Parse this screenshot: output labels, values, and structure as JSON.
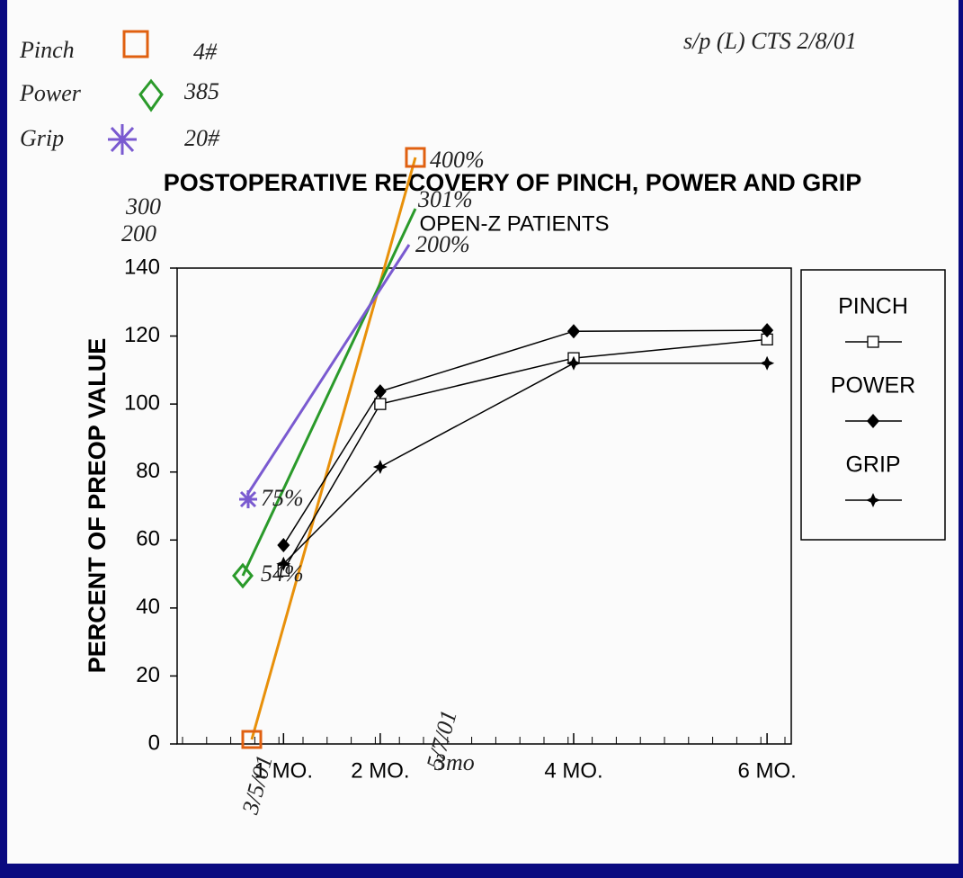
{
  "chart_data": {
    "type": "line",
    "title": "POSTOPERATIVE RECOVERY OF PINCH, POWER AND GRIP",
    "subtitle": "OPEN-Z PATIENTS",
    "y_label": "PERCENT OF PREOP VALUE",
    "x": [
      1,
      2,
      4,
      6
    ],
    "xlim": [
      -0.1,
      6.25
    ],
    "xticks": [
      {
        "value": 1,
        "label": "1 MO."
      },
      {
        "value": 2,
        "label": "2 MO."
      },
      {
        "value": 4,
        "label": "4 MO."
      },
      {
        "value": 6,
        "label": "6 MO."
      }
    ],
    "ylim": [
      0,
      140
    ],
    "yticks": [
      0,
      20,
      40,
      60,
      80,
      100,
      120,
      140
    ],
    "series": [
      {
        "name": "PINCH",
        "color": "#000000",
        "marker": "square",
        "values": [
          51,
          100,
          113.5,
          119
        ]
      },
      {
        "name": "POWER",
        "color": "#000000",
        "marker": "diamond",
        "values": [
          58.5,
          103.7,
          121.4,
          121.7
        ]
      },
      {
        "name": "GRIP",
        "color": "#000000",
        "marker": "star",
        "values": [
          53,
          81.5,
          112,
          112
        ]
      }
    ],
    "legend": "right",
    "annotations": [
      "Pinch",
      "4#",
      "Power",
      "385",
      "Grip",
      "20#",
      "s/p (L) CTS 2/8/01",
      "400%",
      "301%",
      "200%",
      "300",
      "200",
      "75%",
      "54%",
      "3/5/01",
      "5/7/01",
      "3mo"
    ]
  }
}
